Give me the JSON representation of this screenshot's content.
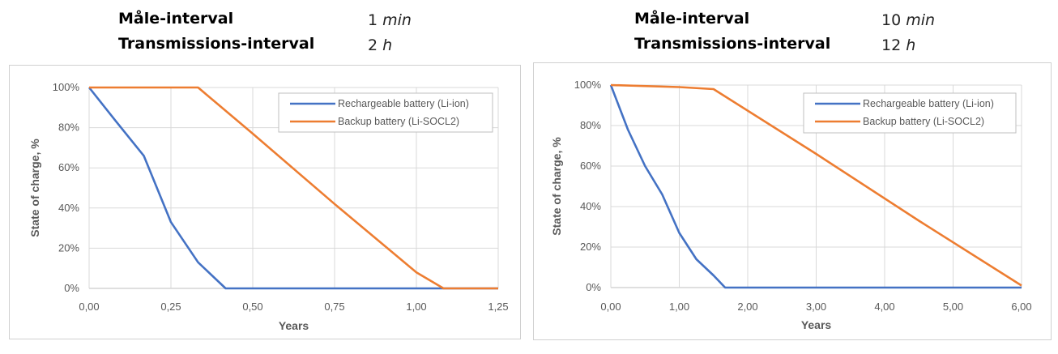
{
  "panels": [
    {
      "params": {
        "measure_label": "Måle-interval",
        "measure_value": "1",
        "measure_unit": "min",
        "transmit_label": "Transmissions-interval",
        "transmit_value": "2",
        "transmit_unit": "h"
      }
    },
    {
      "params": {
        "measure_label": "Måle-interval",
        "measure_value": "10",
        "measure_unit": "min",
        "transmit_label": "Transmissions-interval",
        "transmit_value": "12",
        "transmit_unit": "h"
      }
    }
  ],
  "chart_data": [
    {
      "type": "line",
      "title": "",
      "xlabel": "Years",
      "ylabel": "State of charge, %",
      "xlim": [
        0,
        1.25
      ],
      "ylim": [
        0,
        100
      ],
      "x_ticks": [
        "0,00",
        "0,25",
        "0,50",
        "0,75",
        "1,00",
        "1,25"
      ],
      "y_ticks": [
        "0%",
        "20%",
        "40%",
        "60%",
        "80%",
        "100%"
      ],
      "grid": true,
      "legend_position": "top-right",
      "series": [
        {
          "name": "Rechargeable battery (Li-ion)",
          "color": "#4472C4",
          "points": [
            [
              0,
              100
            ],
            [
              0.083,
              83
            ],
            [
              0.167,
              66
            ],
            [
              0.25,
              33
            ],
            [
              0.333,
              13
            ],
            [
              0.417,
              0
            ],
            [
              1.25,
              0
            ]
          ]
        },
        {
          "name": "Backup battery (Li-SOCL2)",
          "color": "#ED7D31",
          "points": [
            [
              0,
              100
            ],
            [
              0.333,
              100
            ],
            [
              0.5,
              77
            ],
            [
              0.75,
              42
            ],
            [
              1.0,
              8
            ],
            [
              1.083,
              0
            ],
            [
              1.25,
              0
            ]
          ]
        }
      ]
    },
    {
      "type": "line",
      "title": "",
      "xlabel": "Years",
      "ylabel": "State of charge, %",
      "xlim": [
        0,
        6
      ],
      "ylim": [
        0,
        100
      ],
      "x_ticks": [
        "0,00",
        "1,00",
        "2,00",
        "3,00",
        "4,00",
        "5,00",
        "6,00"
      ],
      "y_ticks": [
        "0%",
        "20%",
        "40%",
        "60%",
        "80%",
        "100%"
      ],
      "grid": true,
      "legend_position": "top-right",
      "series": [
        {
          "name": "Rechargeable battery (Li-ion)",
          "color": "#4472C4",
          "points": [
            [
              0,
              100
            ],
            [
              0.25,
              78
            ],
            [
              0.5,
              60
            ],
            [
              0.75,
              46
            ],
            [
              1.0,
              27
            ],
            [
              1.25,
              14
            ],
            [
              1.5,
              6
            ],
            [
              1.67,
              0
            ],
            [
              6.0,
              0
            ]
          ]
        },
        {
          "name": "Backup battery (Li-SOCL2)",
          "color": "#ED7D31",
          "points": [
            [
              0,
              100
            ],
            [
              1.0,
              99
            ],
            [
              1.5,
              98
            ],
            [
              3.0,
              66
            ],
            [
              4.5,
              33
            ],
            [
              6.0,
              1
            ]
          ]
        }
      ]
    }
  ]
}
